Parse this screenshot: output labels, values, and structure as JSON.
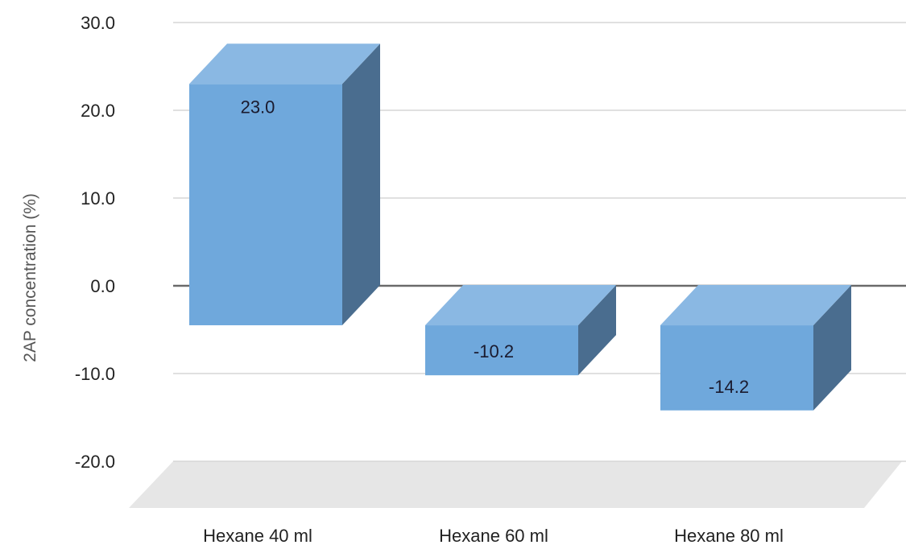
{
  "chart_data": {
    "type": "bar",
    "categories": [
      "Hexane 40 ml",
      "Hexane 60 ml",
      "Hexane 80 ml"
    ],
    "values": [
      23.0,
      -10.2,
      -14.2
    ],
    "data_labels": [
      "23.0",
      "-10.2",
      "-14.2"
    ],
    "xlabel": "",
    "ylabel": "2AP concentration (%)",
    "ylim": [
      -20,
      30
    ],
    "yticks": [
      "30.0",
      "20.0",
      "10.0",
      "0.0",
      "-10.0",
      "-20.0"
    ],
    "grid": true,
    "three_d": true,
    "colors": {
      "bar_front": "#6fa8dc",
      "bar_top": "#8ab8e3",
      "bar_side": "#4a6d8f",
      "floor": "#e6e6e6",
      "grid": "#d6d6d6",
      "zero_line": "#6a6a6a"
    }
  }
}
